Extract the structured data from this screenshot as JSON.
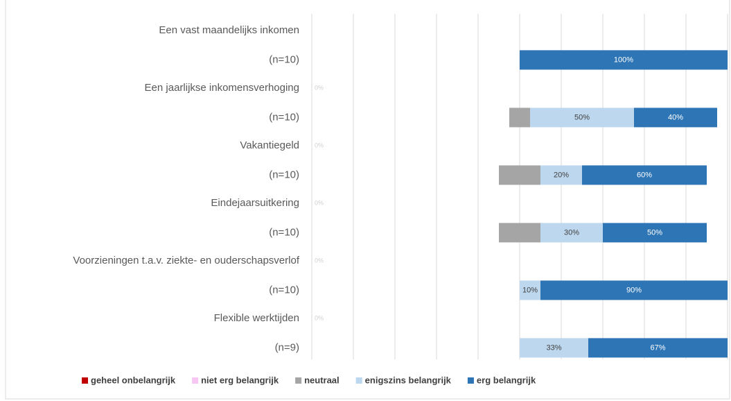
{
  "chart_data": {
    "type": "diverging-bar",
    "categories": [
      "Een vast maandelijks inkomen",
      "Een jaarlijkse inkomensverhoging",
      "Vakantiegeld",
      "Eindejaarsuitkering",
      "Voorzieningen t.a.v. ziekte- en ouderschapsverlof",
      "Flexible werktijden"
    ],
    "sample_sizes": [
      "(n=10)",
      "(n=10)",
      "(n=10)",
      "(n=10)",
      "(n=10)",
      "(n=9)"
    ],
    "series": [
      {
        "name": "geheel onbelangrijk",
        "color": "#c00000",
        "values": [
          0,
          0,
          0,
          0,
          0,
          0
        ],
        "value_labels": [
          null,
          "0%",
          "0%",
          "0%",
          "0%",
          "0%"
        ]
      },
      {
        "name": "niet erg belangrijk",
        "color": "#f7c6f2",
        "values": [
          0,
          0,
          0,
          0,
          0,
          0
        ],
        "value_labels": [
          null,
          null,
          null,
          null,
          null,
          null
        ]
      },
      {
        "name": "neutraal",
        "color": "#a5a5a5",
        "values": [
          0,
          10,
          20,
          20,
          0,
          0
        ],
        "value_labels": [
          null,
          null,
          null,
          null,
          null,
          null
        ]
      },
      {
        "name": "enigszins belangrijk",
        "color": "#bdd7ee",
        "values": [
          0,
          50,
          20,
          30,
          10,
          33
        ],
        "value_labels": [
          null,
          "50%",
          "20%",
          "30%",
          "10%",
          "33%"
        ]
      },
      {
        "name": "erg belangrijk",
        "color": "#2e75b6",
        "values": [
          100,
          40,
          60,
          50,
          90,
          67
        ],
        "value_labels": [
          "100%",
          "40%",
          "60%",
          "50%",
          "90%",
          "67%"
        ]
      }
    ],
    "xlim": [
      -100,
      100
    ],
    "xticks": [
      -100,
      -80,
      -60,
      -40,
      -20,
      0,
      20,
      40,
      60,
      80,
      100
    ],
    "grid": true,
    "legend": "bottom"
  }
}
